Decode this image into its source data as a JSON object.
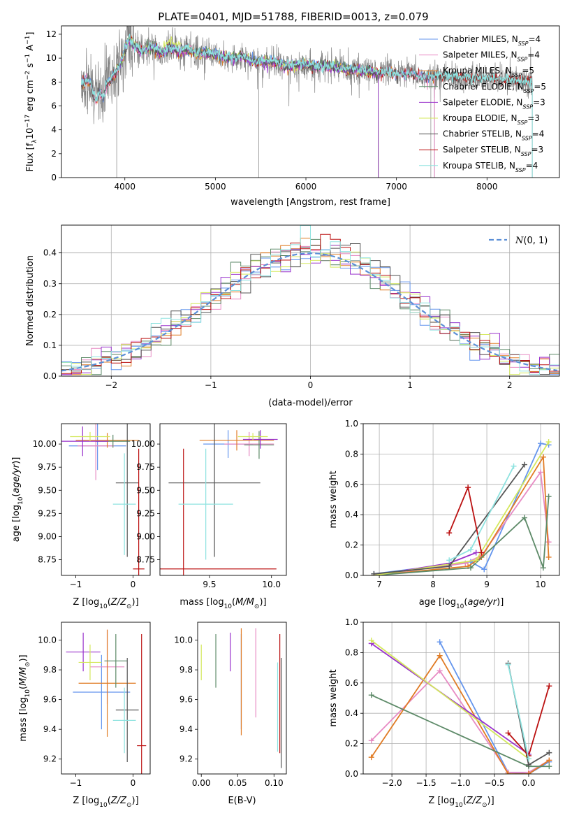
{
  "figure": {
    "title": "PLATE=0401, MJD=51788, FIBERID=0013, z=0.079"
  },
  "colors": {
    "Chabrier MILES": "#6495ed",
    "Salpeter MILES": "#e78ac3",
    "Kroupa MILES": "#e07b24",
    "Chabrier ELODIE": "#5d8a68",
    "Salpeter ELODIE": "#9932cc",
    "Kroupa ELODIE": "#d4e85c",
    "Chabrier STELIB": "#555555",
    "Salpeter STELIB": "#bb1111",
    "Kroupa STELIB": "#8fe3e0",
    "data": "#808080",
    "normal": "#5b8fd6",
    "grid": "#b0b0b0"
  },
  "chart_data": [
    {
      "id": "spectrum",
      "type": "line",
      "xlabel": "wavelength [Angstrom, rest frame]",
      "ylabel": "Flux [f_λ 10^-17 erg cm^-2 s^-1 A^-1]",
      "xlim": [
        3300,
        8800
      ],
      "ylim": [
        0,
        12.7
      ],
      "xticks": [
        4000,
        5000,
        6000,
        7000,
        8000
      ],
      "yticks": [
        0,
        2,
        4,
        6,
        8,
        10,
        12
      ],
      "grid": false,
      "legend_position": "right",
      "continuum": {
        "x": [
          3500,
          3560,
          3620,
          3680,
          3720,
          3760,
          3800,
          3840,
          3880,
          3940,
          4000,
          4050,
          4100,
          4200,
          4300,
          4400,
          4500,
          4600,
          4700,
          4800,
          4900,
          5000,
          5100,
          5200,
          5300,
          5400,
          5500,
          5600,
          5700,
          5800,
          5900,
          6000,
          6100,
          6200,
          6300,
          6400,
          6500,
          6600,
          6700,
          6800,
          6900,
          7000,
          7100,
          7200,
          7300,
          7380
        ],
        "y": [
          7.5,
          8.2,
          7.9,
          6.3,
          7.2,
          6.7,
          7.9,
          8.1,
          8.7,
          9.3,
          10.7,
          11.6,
          11.0,
          10.6,
          10.9,
          10.4,
          10.9,
          10.6,
          10.7,
          10.4,
          10.5,
          10.3,
          10.0,
          10.0,
          10.2,
          9.8,
          9.7,
          9.7,
          9.6,
          9.3,
          9.4,
          9.5,
          9.3,
          9.3,
          9.3,
          9.1,
          9.0,
          9.0,
          8.9,
          8.8,
          8.9,
          8.6,
          8.7,
          8.6,
          8.4,
          8.5
        ]
      },
      "data_extent": [
        3520,
        8500
      ],
      "data_spikes_down": [
        {
          "x": 3910,
          "y": 0
        },
        {
          "x": 5480,
          "y": 0
        },
        {
          "x": 6800,
          "y": 0
        },
        {
          "x": 7380,
          "y": 0
        }
      ],
      "model_extent": {
        "MILES": [
          3520,
          7420
        ],
        "ELODIE": [
          3900,
          6800
        ],
        "STELIB": [
          3520,
          8500
        ]
      },
      "legend": [
        {
          "key": "Chabrier MILES",
          "label": "Chabrier MILES, N_SSP=4"
        },
        {
          "key": "Salpeter MILES",
          "label": "Salpeter MILES, N_SSP=4"
        },
        {
          "key": "Kroupa MILES",
          "label": "Kroupa MILES, N_SSP=5"
        },
        {
          "key": "Chabrier ELODIE",
          "label": "Chabrier ELODIE, N_SSP=5"
        },
        {
          "key": "Salpeter ELODIE",
          "label": "Salpeter ELODIE, N_SSP=3"
        },
        {
          "key": "Kroupa ELODIE",
          "label": "Kroupa ELODIE, N_SSP=3"
        },
        {
          "key": "Chabrier STELIB",
          "label": "Chabrier STELIB, N_SSP=4"
        },
        {
          "key": "Salpeter STELIB",
          "label": "Salpeter STELIB, N_SSP=3"
        },
        {
          "key": "Kroupa STELIB",
          "label": "Kroupa STELIB, N_SSP=4"
        }
      ]
    },
    {
      "id": "residuals",
      "type": "histogram",
      "xlabel": "(data-model)/error",
      "ylabel": "Normed distribution",
      "xlim": [
        -2.5,
        2.5
      ],
      "ylim": [
        0,
        0.49
      ],
      "xticks": [
        -2,
        -1,
        0,
        1,
        2
      ],
      "yticks": [
        0.0,
        0.1,
        0.2,
        0.3,
        0.4
      ],
      "grid": true,
      "legend_position": "top-right",
      "legend": [
        {
          "label": "N(0,1)"
        }
      ],
      "bin_width": 0.1
    },
    {
      "id": "age_vs_Z",
      "type": "errorbar",
      "xlabel": "Z [log10(Z/Z⊙)]",
      "ylabel": "age  [log10(age/yr)]",
      "xlim": [
        -1.25,
        0.3
      ],
      "ylim": [
        8.58,
        10.22
      ],
      "xticks": [
        -1,
        0
      ],
      "yticks": [
        8.75,
        9.0,
        9.25,
        9.5,
        9.75,
        10.0
      ],
      "grid": false,
      "points": [
        {
          "key": "Chabrier MILES",
          "x": -0.62,
          "xerr": 0.5,
          "y": 9.98,
          "yerr": 0.26
        },
        {
          "key": "Salpeter MILES",
          "x": -0.65,
          "xerr": 0.32,
          "y": 9.98,
          "yerr": 0.37
        },
        {
          "key": "Kroupa MILES",
          "x": -0.45,
          "xerr": 0.55,
          "y": 10.04,
          "yerr": 0.08
        },
        {
          "key": "Chabrier ELODIE",
          "x": -0.35,
          "xerr": 0.3,
          "y": 10.03,
          "yerr": 0.07
        },
        {
          "key": "Salpeter ELODIE",
          "x": -0.88,
          "xerr": 0.45,
          "y": 10.03,
          "yerr": 0.16
        },
        {
          "key": "Kroupa ELODIE",
          "x": -0.75,
          "xerr": 0.35,
          "y": 10.08,
          "yerr": 0.05
        },
        {
          "key": "Chabrier STELIB",
          "x": -0.1,
          "xerr": 0.2,
          "y": 9.58,
          "yerr": 0.8
        },
        {
          "key": "Salpeter STELIB",
          "x": 0.1,
          "xerr": 0.1,
          "y": 8.65,
          "yerr": 1.3
        },
        {
          "key": "Kroupa STELIB",
          "x": -0.15,
          "xerr": 0.2,
          "y": 9.35,
          "yerr": 0.55
        }
      ]
    },
    {
      "id": "age_vs_mass",
      "type": "errorbar",
      "xlabel": "mass [log10(M/M⊙)]",
      "ylabel": "",
      "xlim": [
        9.1,
        10.12
      ],
      "ylim": [
        8.58,
        10.22
      ],
      "xticks": [
        9.5,
        10.0
      ],
      "yticks": [
        8.75,
        9.0,
        9.25,
        9.5,
        9.75,
        10.0
      ],
      "grid": false,
      "points": [
        {
          "key": "Chabrier MILES",
          "x": 9.65,
          "xerr": 0.2,
          "y": 10.0,
          "yerr": 0.15
        },
        {
          "key": "Salpeter MILES",
          "x": 9.82,
          "xerr": 0.2,
          "y": 10.0,
          "yerr": 0.13
        },
        {
          "key": "Kroupa MILES",
          "x": 9.72,
          "xerr": 0.3,
          "y": 10.04,
          "yerr": 0.11
        },
        {
          "key": "Chabrier ELODIE",
          "x": 9.9,
          "xerr": 0.12,
          "y": 9.99,
          "yerr": 0.15
        },
        {
          "key": "Salpeter ELODIE",
          "x": 9.91,
          "xerr": 0.14,
          "y": 10.05,
          "yerr": 0.1
        },
        {
          "key": "Kroupa ELODIE",
          "x": 9.85,
          "xerr": 0.12,
          "y": 10.08,
          "yerr": 0.04
        },
        {
          "key": "Chabrier STELIB",
          "x": 9.54,
          "xerr": 0.37,
          "y": 9.58,
          "yerr": 0.8
        },
        {
          "key": "Salpeter STELIB",
          "x": 9.29,
          "xerr": 0.75,
          "y": 8.65,
          "yerr": 1.3
        },
        {
          "key": "Kroupa STELIB",
          "x": 9.47,
          "xerr": 0.22,
          "y": 9.35,
          "yerr": 0.6
        }
      ]
    },
    {
      "id": "weight_vs_age",
      "type": "line",
      "xlabel": "age  [log10(age/yr)]",
      "ylabel": "mass weight",
      "xlim": [
        6.7,
        10.35
      ],
      "ylim": [
        0,
        1.0
      ],
      "xticks": [
        7,
        8,
        9,
        10
      ],
      "yticks": [
        0.0,
        0.2,
        0.4,
        0.6,
        0.8,
        1.0
      ],
      "grid": true,
      "series": [
        {
          "key": "Chabrier MILES",
          "x": [
            6.9,
            8.7,
            8.95,
            10.0,
            10.15
          ],
          "y": [
            0.01,
            0.09,
            0.04,
            0.87,
            0.86
          ]
        },
        {
          "key": "Salpeter MILES",
          "x": [
            6.9,
            8.6,
            8.9,
            10.0,
            10.15
          ],
          "y": [
            0.0,
            0.08,
            0.13,
            0.68,
            0.22
          ]
        },
        {
          "key": "Kroupa MILES",
          "x": [
            6.9,
            8.65,
            8.9,
            10.05,
            10.15
          ],
          "y": [
            0.0,
            0.06,
            0.12,
            0.78,
            0.12
          ]
        },
        {
          "key": "Chabrier ELODIE",
          "x": [
            6.9,
            8.7,
            9.7,
            10.05,
            10.15
          ],
          "y": [
            0.0,
            0.05,
            0.38,
            0.05,
            0.52
          ]
        },
        {
          "key": "Salpeter ELODIE",
          "x": [
            6.9,
            8.3,
            8.8
          ],
          "y": [
            0.0,
            0.08,
            0.15
          ]
        },
        {
          "key": "Kroupa ELODIE",
          "x": [
            6.9,
            8.8,
            10.15
          ],
          "y": [
            0.0,
            0.1,
            0.88
          ]
        },
        {
          "key": "Chabrier STELIB",
          "x": [
            6.9,
            8.3,
            9.7
          ],
          "y": [
            0.01,
            0.06,
            0.73
          ]
        },
        {
          "key": "Salpeter STELIB",
          "x": [
            8.3,
            8.65,
            8.9
          ],
          "y": [
            0.28,
            0.58,
            0.15
          ]
        },
        {
          "key": "Kroupa STELIB",
          "x": [
            8.3,
            8.7,
            9.5
          ],
          "y": [
            0.1,
            0.17,
            0.72
          ]
        }
      ]
    },
    {
      "id": "mass_vs_Z",
      "type": "errorbar",
      "xlabel": "Z [log10(Z/Z⊙)]",
      "ylabel": "mass [log10(M/M⊙)]",
      "xlim": [
        -1.25,
        0.3
      ],
      "ylim": [
        9.1,
        10.12
      ],
      "xticks": [
        -1,
        0
      ],
      "yticks": [
        9.2,
        9.4,
        9.6,
        9.8,
        10.0
      ],
      "grid": false,
      "points": [
        {
          "key": "Chabrier MILES",
          "x": -0.55,
          "xerr": 0.5,
          "y": 9.65,
          "yerr": 0.25
        },
        {
          "key": "Salpeter MILES",
          "x": -0.45,
          "xerr": 0.3,
          "y": 9.82,
          "yerr": 0.25
        },
        {
          "key": "Kroupa MILES",
          "x": -0.45,
          "xerr": 0.5,
          "y": 9.71,
          "yerr": 0.36
        },
        {
          "key": "Chabrier ELODIE",
          "x": -0.3,
          "xerr": 0.2,
          "y": 9.86,
          "yerr": 0.18
        },
        {
          "key": "Salpeter ELODIE",
          "x": -0.87,
          "xerr": 0.3,
          "y": 9.92,
          "yerr": 0.13
        },
        {
          "key": "Kroupa ELODIE",
          "x": -0.75,
          "xerr": 0.2,
          "y": 9.85,
          "yerr": 0.12
        },
        {
          "key": "Chabrier STELIB",
          "x": -0.1,
          "xerr": 0.2,
          "y": 9.53,
          "yerr": 0.35
        },
        {
          "key": "Salpeter STELIB",
          "x": 0.15,
          "xerr": 0.08,
          "y": 9.29,
          "yerr": 0.75
        },
        {
          "key": "Kroupa STELIB",
          "x": -0.15,
          "xerr": 0.2,
          "y": 9.46,
          "yerr": 0.22
        }
      ]
    },
    {
      "id": "mass_vs_ebv",
      "type": "errorbar",
      "xlabel": "E(B-V)",
      "ylabel": "",
      "xlim": [
        -0.005,
        0.117
      ],
      "ylim": [
        9.1,
        10.12
      ],
      "xticks": [
        0.0,
        0.05,
        0.1
      ],
      "yticks": [
        9.2,
        9.4,
        9.6,
        9.8,
        10.0
      ],
      "grid": false,
      "points": [
        {
          "key": "Chabrier MILES",
          "x": 0.055,
          "xerr": 0,
          "y": 9.72,
          "yerr": 0.32
        },
        {
          "key": "Salpeter MILES",
          "x": 0.075,
          "xerr": 0,
          "y": 9.78,
          "yerr": 0.3
        },
        {
          "key": "Kroupa MILES",
          "x": 0.055,
          "xerr": 0,
          "y": 9.72,
          "yerr": 0.36
        },
        {
          "key": "Chabrier ELODIE",
          "x": 0.02,
          "xerr": 0,
          "y": 9.86,
          "yerr": 0.18
        },
        {
          "key": "Salpeter ELODIE",
          "x": 0.04,
          "xerr": 0,
          "y": 9.92,
          "yerr": 0.13
        },
        {
          "key": "Kroupa ELODIE",
          "x": 0.0,
          "xerr": 0,
          "y": 9.85,
          "yerr": 0.12
        },
        {
          "key": "Chabrier STELIB",
          "x": 0.11,
          "xerr": 0,
          "y": 9.51,
          "yerr": 0.37
        },
        {
          "key": "Salpeter STELIB",
          "x": 0.108,
          "xerr": 0,
          "y": 9.64,
          "yerr": 0.4
        },
        {
          "key": "Kroupa STELIB",
          "x": 0.105,
          "xerr": 0,
          "y": 9.55,
          "yerr": 0.3
        }
      ]
    },
    {
      "id": "weight_vs_Z",
      "type": "line",
      "xlabel": "Z [log10(Z/Z⊙)]",
      "ylabel": "mass weight",
      "xlim": [
        -2.42,
        0.45
      ],
      "ylim": [
        0,
        1.0
      ],
      "xticks": [
        -2.0,
        -1.5,
        -1.0,
        -0.5,
        0.0
      ],
      "yticks": [
        0.0,
        0.2,
        0.4,
        0.6,
        0.8,
        1.0
      ],
      "grid": true,
      "series": [
        {
          "key": "Chabrier MILES",
          "x": [
            -1.3,
            -0.3,
            0.0,
            0.3
          ],
          "y": [
            0.87,
            0.01,
            0.0,
            0.08
          ]
        },
        {
          "key": "Salpeter MILES",
          "x": [
            -2.3,
            -1.3,
            -0.3,
            0.0,
            0.3
          ],
          "y": [
            0.22,
            0.68,
            0.01,
            0.01,
            0.09
          ]
        },
        {
          "key": "Kroupa MILES",
          "x": [
            -2.3,
            -1.3,
            -0.3,
            0.0,
            0.3
          ],
          "y": [
            0.11,
            0.78,
            0.0,
            0.0,
            0.09
          ]
        },
        {
          "key": "Chabrier ELODIE",
          "x": [
            -2.3,
            0.0,
            0.3
          ],
          "y": [
            0.52,
            0.05,
            0.05
          ]
        },
        {
          "key": "Salpeter ELODIE",
          "x": [
            -2.3,
            0.0
          ],
          "y": [
            0.86,
            0.13
          ]
        },
        {
          "key": "Kroupa ELODIE",
          "x": [
            -2.3,
            0.0
          ],
          "y": [
            0.88,
            0.1
          ]
        },
        {
          "key": "Chabrier STELIB",
          "x": [
            -0.3,
            0.0,
            0.3
          ],
          "y": [
            0.73,
            0.06,
            0.14
          ]
        },
        {
          "key": "Salpeter STELIB",
          "x": [
            -0.3,
            0.0,
            0.3
          ],
          "y": [
            0.27,
            0.12,
            0.58
          ]
        },
        {
          "key": "Kroupa STELIB",
          "x": [
            -0.3,
            0.0
          ],
          "y": [
            0.72,
            0.1
          ]
        }
      ]
    }
  ]
}
